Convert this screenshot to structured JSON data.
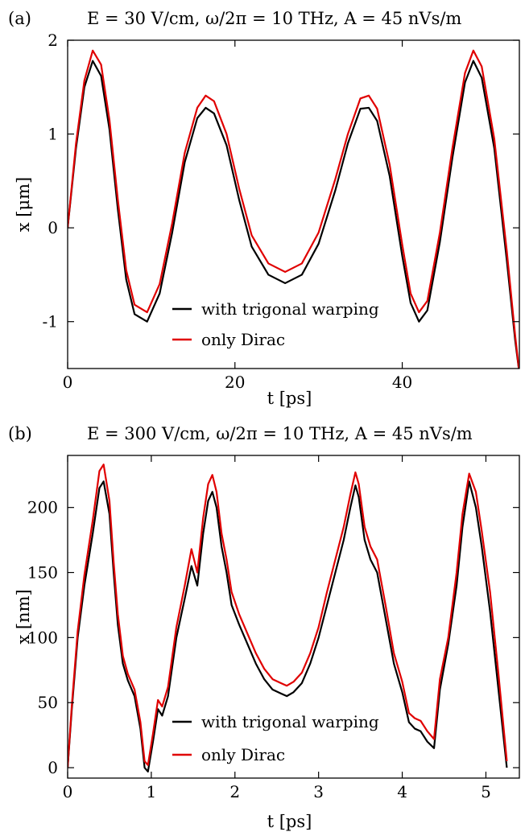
{
  "chart_data": [
    {
      "type": "line",
      "panel_label": "(a)",
      "title": "E = 30 V/cm, ω/2π = 10 THz, A = 45 nVs/m",
      "xlabel": "t [ps]",
      "ylabel": "x [μm]",
      "xlim": [
        0,
        54
      ],
      "ylim": [
        -1.5,
        2.0
      ],
      "xticks": [
        0,
        20,
        40
      ],
      "xtick_labels": [
        "0",
        "20",
        "40"
      ],
      "yticks": [
        -1,
        0,
        1,
        2
      ],
      "ytick_labels": [
        "-1",
        "0",
        "1",
        "2"
      ],
      "legend_position": "lower-center",
      "series": [
        {
          "name": "with trigonal warping",
          "color": "#000000",
          "x": [
            0,
            1,
            2,
            3,
            4,
            5,
            6,
            7,
            8,
            9.5,
            11,
            12.5,
            14,
            15.5,
            16.5,
            17.5,
            19,
            20.5,
            22,
            24,
            26,
            28,
            30,
            32,
            33.5,
            35,
            36,
            37,
            38.5,
            40,
            41,
            42,
            43,
            44.5,
            46,
            47.5,
            48.5,
            49.5,
            51,
            52.5,
            53.5,
            54
          ],
          "y": [
            0.0,
            0.85,
            1.5,
            1.78,
            1.62,
            1.05,
            0.2,
            -0.55,
            -0.92,
            -1.0,
            -0.7,
            -0.05,
            0.7,
            1.17,
            1.28,
            1.22,
            0.88,
            0.3,
            -0.2,
            -0.5,
            -0.59,
            -0.5,
            -0.17,
            0.4,
            0.9,
            1.27,
            1.28,
            1.14,
            0.55,
            -0.3,
            -0.8,
            -1.0,
            -0.88,
            -0.15,
            0.75,
            1.55,
            1.78,
            1.6,
            0.85,
            -0.35,
            -1.2,
            -1.55
          ]
        },
        {
          "name": "only Dirac",
          "color": "#e00000",
          "x": [
            0,
            1,
            2,
            3,
            4,
            5,
            6,
            7,
            8,
            9.5,
            11,
            12.5,
            14,
            15.5,
            16.5,
            17.5,
            19,
            20.5,
            22,
            24,
            26,
            28,
            30,
            32,
            33.5,
            35,
            36,
            37,
            38.5,
            40,
            41,
            42,
            43,
            44.5,
            46,
            47.5,
            48.5,
            49.5,
            51,
            52.5,
            53.5,
            54
          ],
          "y": [
            0.0,
            0.9,
            1.57,
            1.89,
            1.74,
            1.15,
            0.3,
            -0.45,
            -0.82,
            -0.9,
            -0.6,
            0.05,
            0.8,
            1.28,
            1.41,
            1.35,
            1.0,
            0.42,
            -0.08,
            -0.38,
            -0.47,
            -0.38,
            -0.05,
            0.52,
            1.0,
            1.38,
            1.41,
            1.27,
            0.67,
            -0.18,
            -0.7,
            -0.9,
            -0.78,
            -0.05,
            0.85,
            1.65,
            1.89,
            1.72,
            0.95,
            -0.25,
            -1.15,
            -1.55
          ]
        }
      ]
    },
    {
      "type": "line",
      "panel_label": "(b)",
      "title": "E = 300 V/cm, ω/2π = 10 THz, A = 45 nVs/m",
      "xlabel": "t [ps]",
      "ylabel": "x [nm]",
      "xlim": [
        0,
        5.4
      ],
      "ylim": [
        -8,
        240
      ],
      "xticks": [
        0,
        1,
        2,
        3,
        4,
        5
      ],
      "xtick_labels": [
        "0",
        "1",
        "2",
        "3",
        "4",
        "5"
      ],
      "yticks": [
        0,
        50,
        100,
        150,
        200
      ],
      "ytick_labels": [
        "0",
        "50",
        "100",
        "150",
        "200"
      ],
      "legend_position": "lower-center",
      "series": [
        {
          "name": "with trigonal warping",
          "color": "#000000",
          "x": [
            0,
            0.05,
            0.12,
            0.2,
            0.3,
            0.38,
            0.43,
            0.5,
            0.55,
            0.6,
            0.66,
            0.72,
            0.8,
            0.87,
            0.92,
            0.96,
            1.02,
            1.08,
            1.13,
            1.2,
            1.3,
            1.4,
            1.48,
            1.55,
            1.62,
            1.68,
            1.73,
            1.78,
            1.84,
            1.9,
            1.96,
            2.05,
            2.15,
            2.25,
            2.35,
            2.45,
            2.55,
            2.62,
            2.7,
            2.8,
            2.9,
            3.0,
            3.1,
            3.2,
            3.3,
            3.38,
            3.44,
            3.48,
            3.55,
            3.62,
            3.7,
            3.8,
            3.9,
            4.0,
            4.08,
            4.15,
            4.22,
            4.3,
            4.38,
            4.45,
            4.55,
            4.65,
            4.72,
            4.8,
            4.88,
            4.95,
            5.05,
            5.15,
            5.25
          ],
          "y": [
            0,
            45,
            100,
            140,
            180,
            215,
            220,
            195,
            150,
            110,
            80,
            67,
            55,
            30,
            0,
            -3,
            20,
            45,
            40,
            55,
            100,
            130,
            155,
            140,
            180,
            205,
            212,
            200,
            170,
            150,
            125,
            110,
            95,
            80,
            68,
            60,
            57,
            55,
            58,
            65,
            80,
            100,
            125,
            150,
            175,
            200,
            217,
            208,
            175,
            160,
            150,
            115,
            80,
            58,
            35,
            30,
            28,
            20,
            15,
            60,
            95,
            140,
            185,
            220,
            200,
            170,
            120,
            60,
            0
          ]
        },
        {
          "name": "only Dirac",
          "color": "#e00000",
          "x": [
            0,
            0.05,
            0.12,
            0.2,
            0.3,
            0.38,
            0.43,
            0.5,
            0.55,
            0.6,
            0.66,
            0.72,
            0.8,
            0.87,
            0.92,
            0.96,
            1.02,
            1.08,
            1.13,
            1.2,
            1.3,
            1.4,
            1.48,
            1.55,
            1.62,
            1.68,
            1.73,
            1.78,
            1.84,
            1.9,
            1.96,
            2.05,
            2.15,
            2.25,
            2.35,
            2.45,
            2.55,
            2.62,
            2.7,
            2.8,
            2.9,
            3.0,
            3.1,
            3.2,
            3.3,
            3.38,
            3.44,
            3.48,
            3.55,
            3.62,
            3.7,
            3.8,
            3.9,
            4.0,
            4.08,
            4.15,
            4.22,
            4.3,
            4.38,
            4.45,
            4.55,
            4.65,
            4.72,
            4.8,
            4.88,
            4.95,
            5.05,
            5.15,
            5.25
          ],
          "y": [
            0,
            48,
            105,
            148,
            190,
            228,
            233,
            205,
            158,
            118,
            86,
            72,
            60,
            35,
            5,
            2,
            26,
            52,
            47,
            62,
            108,
            140,
            168,
            150,
            192,
            218,
            225,
            212,
            180,
            160,
            135,
            118,
            103,
            88,
            76,
            68,
            65,
            63,
            66,
            73,
            88,
            108,
            135,
            160,
            185,
            210,
            227,
            218,
            185,
            170,
            160,
            125,
            88,
            66,
            42,
            38,
            36,
            28,
            22,
            68,
            100,
            150,
            195,
            226,
            212,
            182,
            135,
            72,
            5
          ]
        }
      ]
    }
  ]
}
